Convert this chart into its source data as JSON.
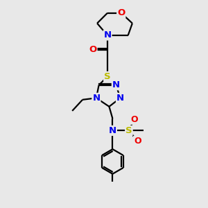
{
  "bg_color": "#e8e8e8",
  "atom_colors": {
    "N": "#0000ee",
    "O": "#ee0000",
    "S": "#bbbb00",
    "C": "#000000"
  },
  "bond_color": "#000000",
  "bond_lw": 1.6,
  "font_size": 9.5,
  "figsize": [
    3.0,
    3.0
  ],
  "dpi": 100,
  "xlim": [
    0,
    10
  ],
  "ylim": [
    0,
    12
  ]
}
